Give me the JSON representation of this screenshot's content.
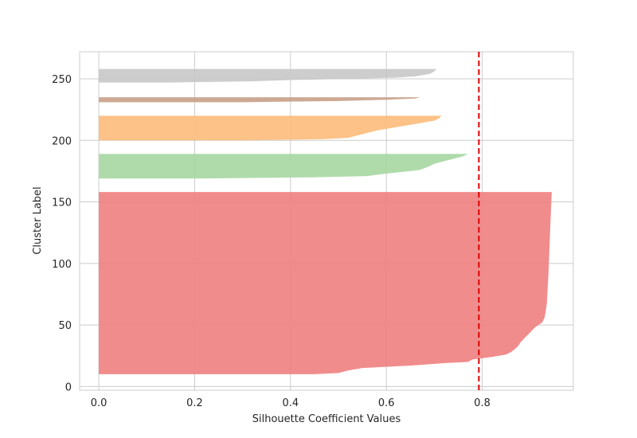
{
  "chart_data": {
    "type": "area",
    "title": "",
    "xlabel": "Silhouette Coefficient Values",
    "ylabel": "Cluster Label",
    "xlim": [
      -0.04,
      0.99
    ],
    "ylim": [
      -3,
      272
    ],
    "x_ticks": [
      0.0,
      0.2,
      0.4,
      0.6,
      0.8
    ],
    "x_tick_labels": [
      "0.0",
      "0.2",
      "0.4",
      "0.6",
      "0.8"
    ],
    "y_ticks": [
      0,
      50,
      100,
      150,
      200,
      250
    ],
    "y_tick_labels": [
      "0",
      "50",
      "100",
      "150",
      "200",
      "250"
    ],
    "grid": true,
    "average_silhouette_line": {
      "x": 0.793,
      "color": "#e00000",
      "style": "dashed"
    },
    "series": [
      {
        "color": "#f08080",
        "profile": [
          [
            10,
            0.45
          ],
          [
            11,
            0.5
          ],
          [
            13,
            0.52
          ],
          [
            15,
            0.55
          ],
          [
            17,
            0.65
          ],
          [
            19,
            0.72
          ],
          [
            20,
            0.77
          ],
          [
            22,
            0.78
          ],
          [
            24,
            0.82
          ],
          [
            26,
            0.85
          ],
          [
            28,
            0.86
          ],
          [
            31,
            0.87
          ],
          [
            33,
            0.875
          ],
          [
            36,
            0.88
          ],
          [
            40,
            0.89
          ],
          [
            44,
            0.9
          ],
          [
            48,
            0.91
          ],
          [
            52,
            0.925
          ],
          [
            56,
            0.93
          ],
          [
            60,
            0.932
          ],
          [
            68,
            0.935
          ],
          [
            76,
            0.936
          ],
          [
            90,
            0.938
          ],
          [
            110,
            0.94
          ],
          [
            130,
            0.942
          ],
          [
            158,
            0.945
          ]
        ]
      },
      {
        "color": "#a6d7a2",
        "profile": [
          [
            169,
            0.2
          ],
          [
            170,
            0.45
          ],
          [
            171,
            0.56
          ],
          [
            173,
            0.6
          ],
          [
            175,
            0.65
          ],
          [
            176,
            0.67
          ],
          [
            179,
            0.69
          ],
          [
            181,
            0.7
          ],
          [
            183,
            0.72
          ],
          [
            186,
            0.75
          ],
          [
            187,
            0.76
          ],
          [
            189,
            0.77
          ]
        ]
      },
      {
        "color": "#fdbb7a",
        "profile": [
          [
            200,
            0.3
          ],
          [
            201,
            0.47
          ],
          [
            202,
            0.52
          ],
          [
            205,
            0.55
          ],
          [
            208,
            0.58
          ],
          [
            212,
            0.64
          ],
          [
            216,
            0.7
          ],
          [
            218,
            0.71
          ],
          [
            220,
            0.715
          ]
        ]
      },
      {
        "color": "#c8a088",
        "profile": [
          [
            231,
            0.3
          ],
          [
            232,
            0.5
          ],
          [
            233,
            0.6
          ],
          [
            234,
            0.66
          ],
          [
            235,
            0.67
          ]
        ]
      },
      {
        "color": "#c8c8c8",
        "profile": [
          [
            247,
            0.15
          ],
          [
            248,
            0.32
          ],
          [
            249,
            0.4
          ],
          [
            250,
            0.52
          ],
          [
            251,
            0.62
          ],
          [
            252,
            0.66
          ],
          [
            254,
            0.69
          ],
          [
            256,
            0.7
          ],
          [
            258,
            0.705
          ]
        ]
      }
    ]
  }
}
